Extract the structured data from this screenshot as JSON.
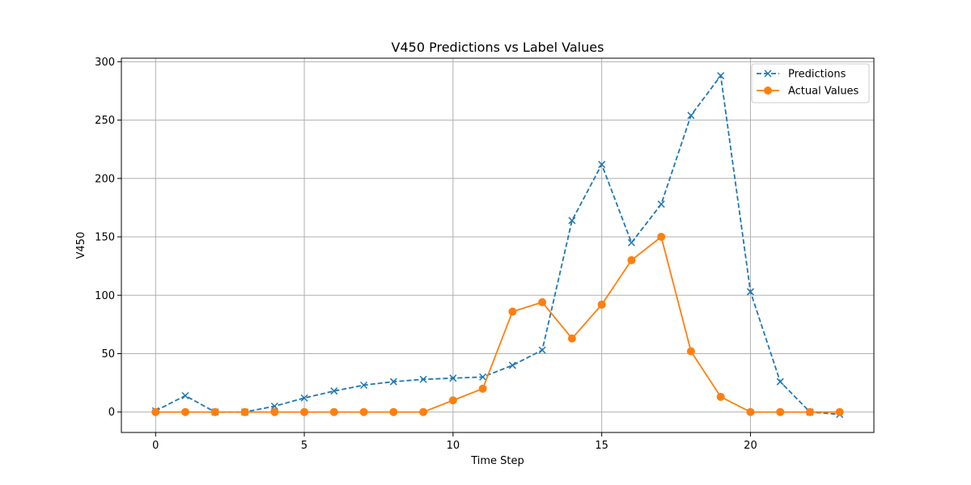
{
  "chart_data": {
    "type": "line",
    "title": "V450 Predictions vs Label Values",
    "xlabel": "Time Step",
    "ylabel": "V450",
    "x": [
      0,
      1,
      2,
      3,
      4,
      5,
      6,
      7,
      8,
      9,
      10,
      11,
      12,
      13,
      14,
      15,
      16,
      17,
      18,
      19,
      20,
      21,
      22,
      23
    ],
    "xlim": [
      -1.15,
      24.15
    ],
    "ylim": [
      -17.5,
      303
    ],
    "xticks": [
      0,
      5,
      10,
      15,
      20
    ],
    "yticks": [
      0,
      50,
      100,
      150,
      200,
      250,
      300
    ],
    "grid": true,
    "legend_position": "top-right",
    "series": [
      {
        "name": "Predictions",
        "color": "#1f77b4",
        "line_style": "dashed",
        "marker": "x",
        "values": [
          1,
          14,
          0,
          0,
          5,
          12,
          18,
          23,
          26,
          28,
          29,
          30,
          40,
          53,
          164,
          212,
          145,
          178,
          254,
          288,
          103,
          26,
          0,
          -2
        ]
      },
      {
        "name": "Actual Values",
        "color": "#ff7f0e",
        "line_style": "solid",
        "marker": "circle",
        "values": [
          0,
          0,
          0,
          0,
          0,
          0,
          0,
          0,
          0,
          0,
          10,
          20,
          86,
          94,
          63,
          92,
          130,
          150,
          52,
          13,
          0,
          0,
          0,
          0
        ]
      }
    ]
  }
}
